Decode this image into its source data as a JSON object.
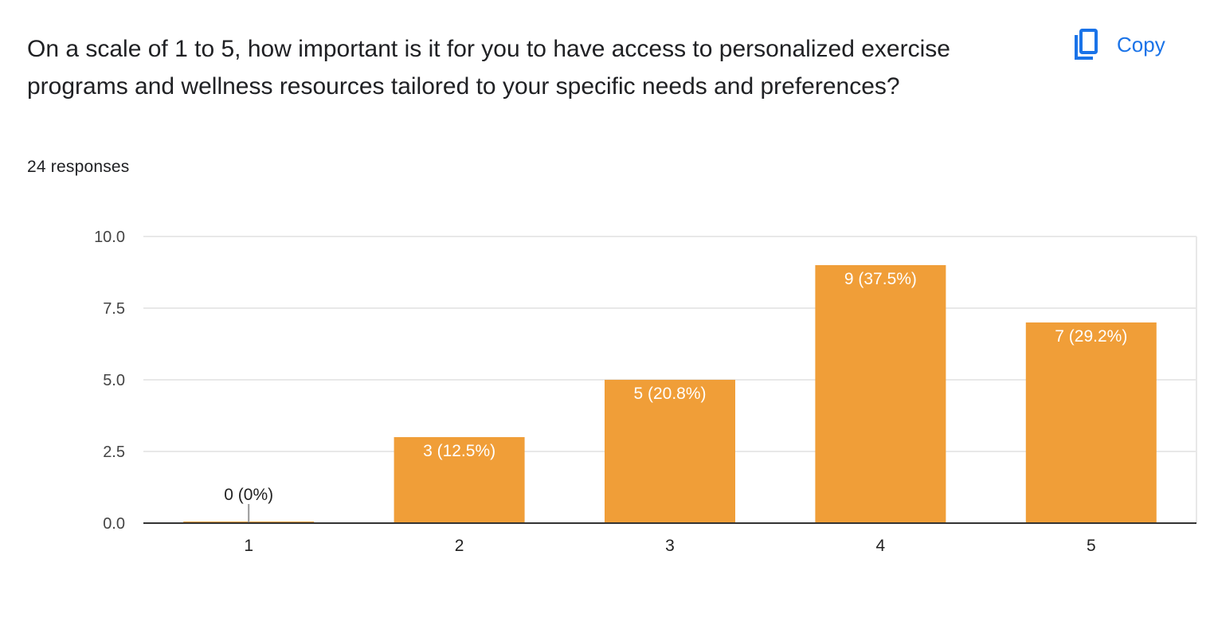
{
  "question": {
    "title": "On a scale of 1 to 5, how important is it for you to have access to personalized exercise programs and wellness resources tailored to your specific needs and preferences?",
    "responses": "24 responses"
  },
  "copy_button": {
    "label": "Copy",
    "icon": "copy-icon"
  },
  "colors": {
    "bar": "#f09e38",
    "accent": "#1a73e8",
    "grid": "#e8e8e8",
    "axis": "#333333"
  },
  "chart_data": {
    "type": "bar",
    "categories": [
      "1",
      "2",
      "3",
      "4",
      "5"
    ],
    "values": [
      0,
      3,
      5,
      9,
      7
    ],
    "labels": [
      "0 (0%)",
      "3 (12.5%)",
      "5 (20.8%)",
      "9 (37.5%)",
      "7 (29.2%)"
    ],
    "yticks": [
      "0.0",
      "2.5",
      "5.0",
      "7.5",
      "10.0"
    ],
    "ylim": [
      0,
      10
    ],
    "grid": true
  }
}
